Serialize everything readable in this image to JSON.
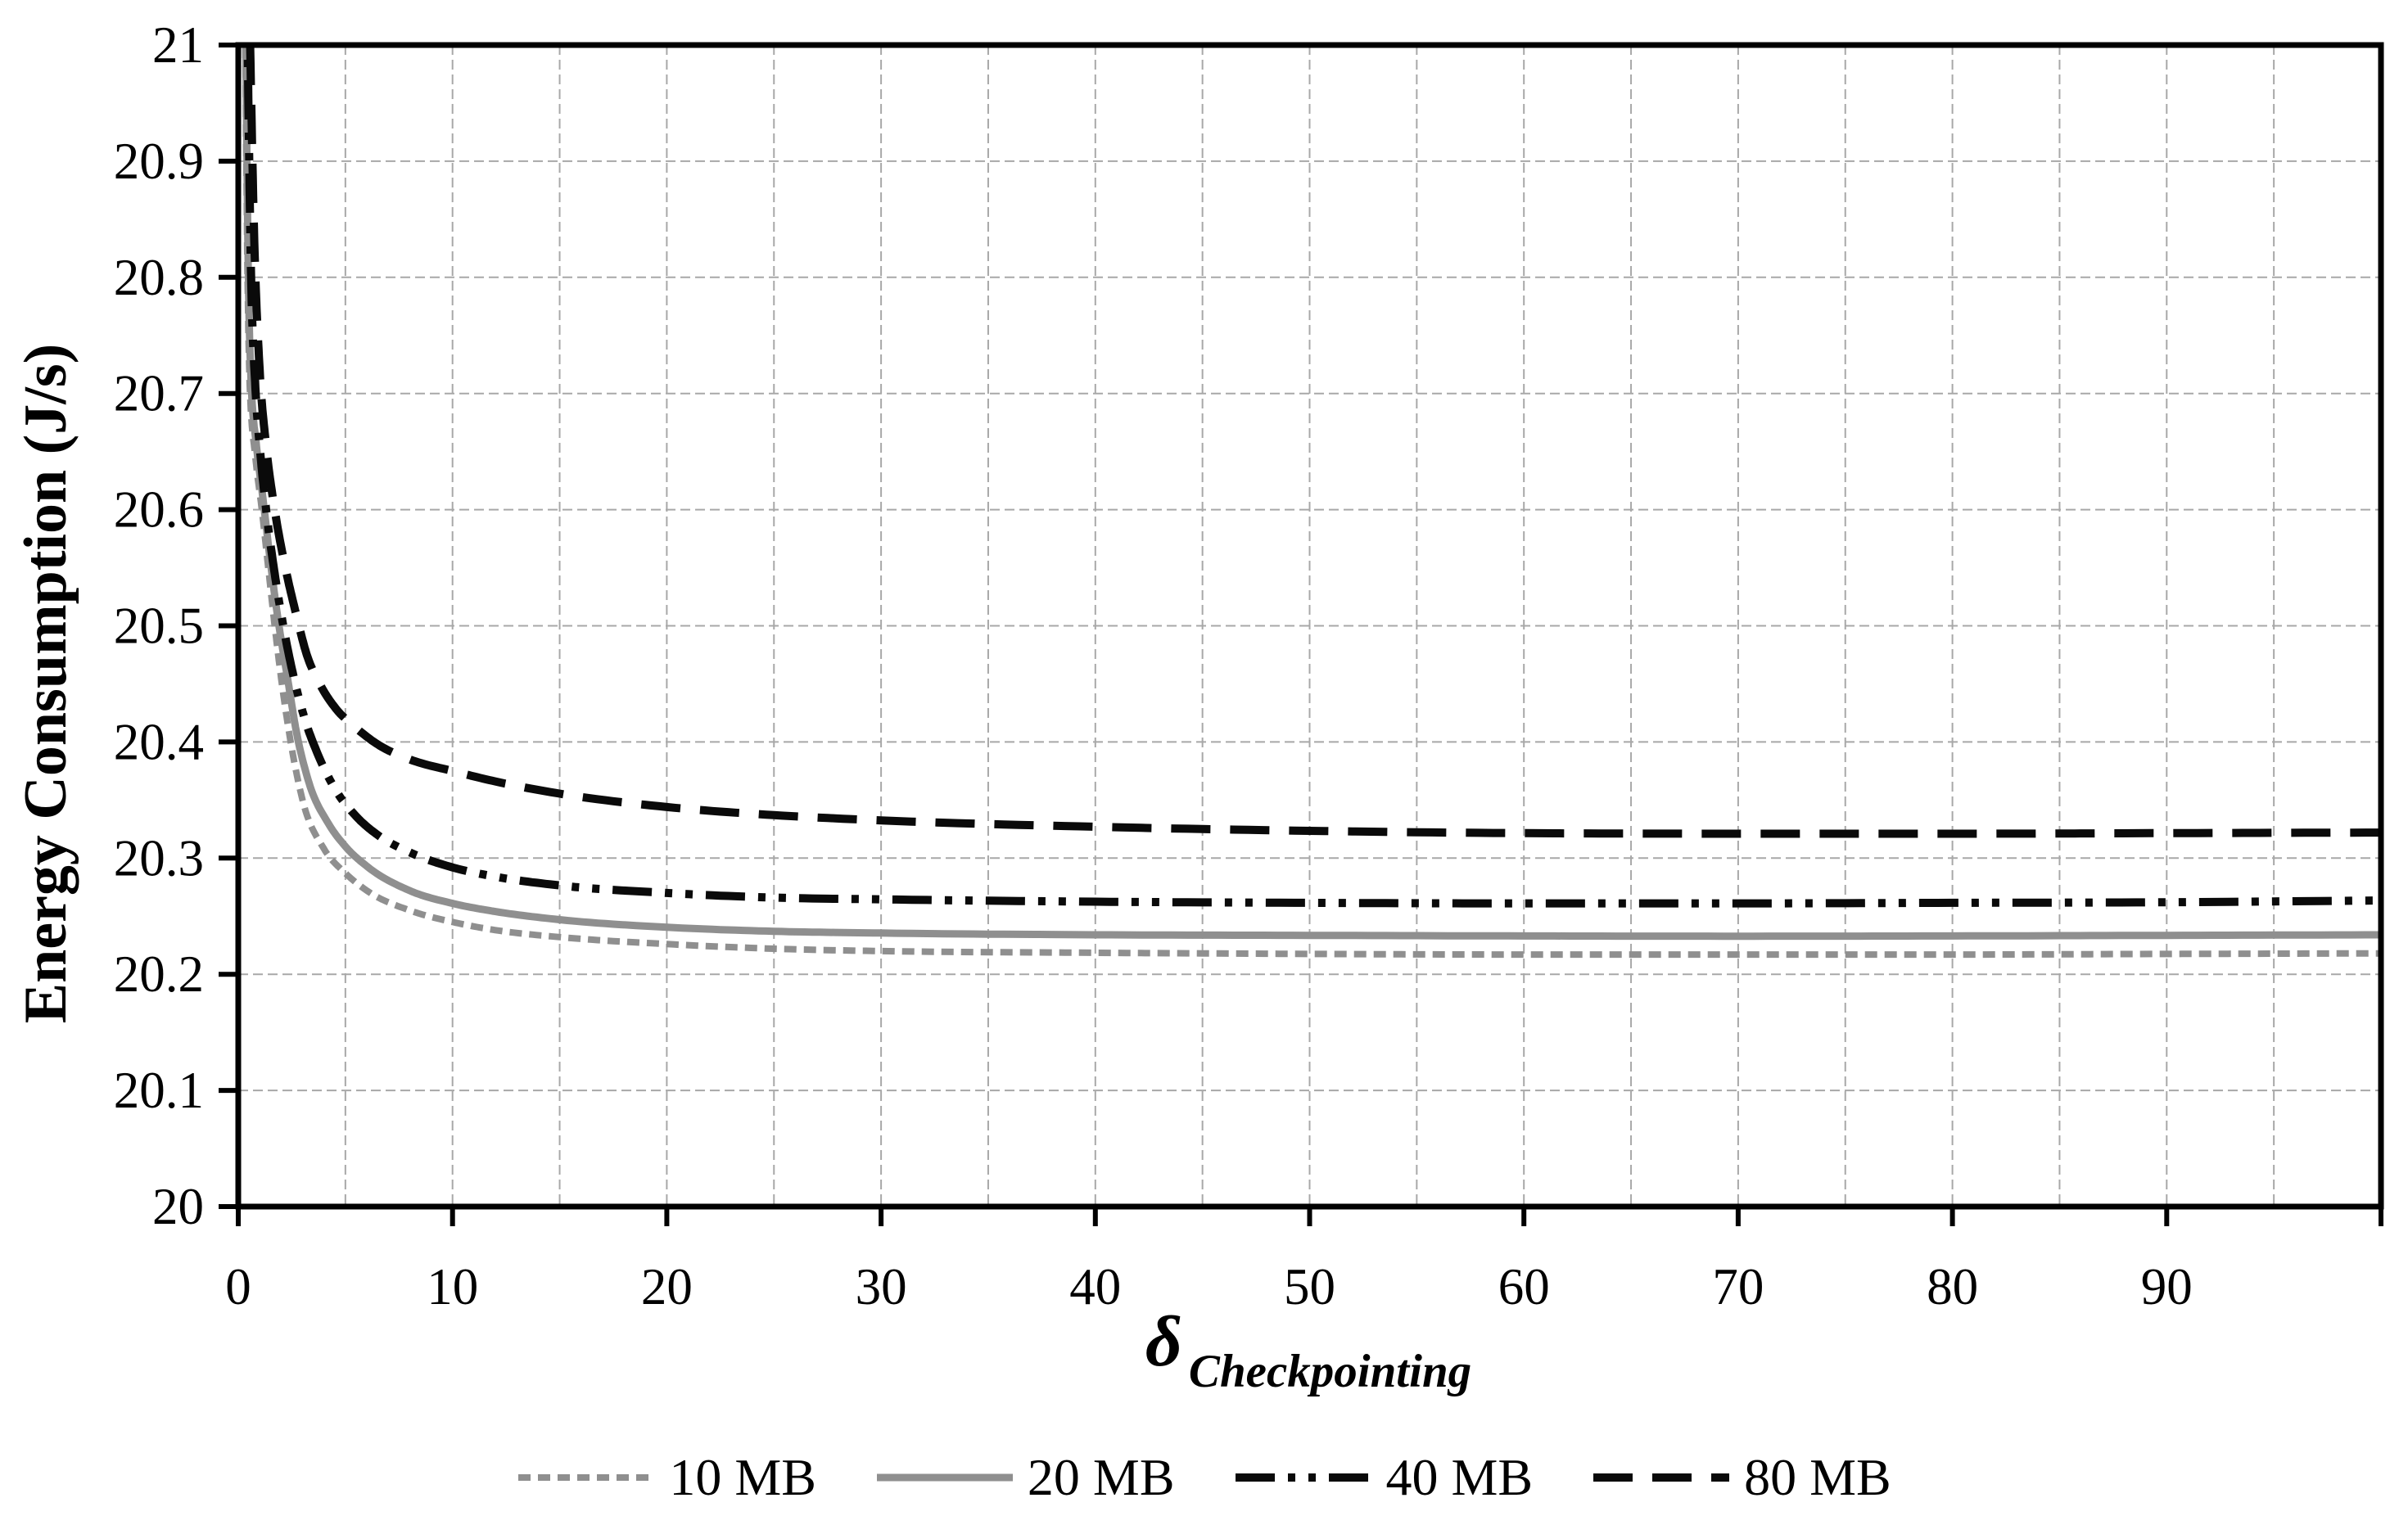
{
  "figure": {
    "background": "#ffffff",
    "text_color": "#000000"
  },
  "chart_data": {
    "type": "line",
    "title": "",
    "ylabel": "Energy Consumption (J/s)",
    "xlabel": {
      "symbol": "δ",
      "subscript": "Checkpointing"
    },
    "xlim": [
      0,
      100
    ],
    "ylim": [
      20,
      21
    ],
    "grid": {
      "x_interval": 5,
      "y_interval": 0.1,
      "color": "#a8a8a8",
      "dash": "12 6",
      "width": 2
    },
    "axis": {
      "color": "#000000",
      "border_width": 7,
      "tick_width": 6,
      "tick_length": 24
    },
    "x_ticks": {
      "values": [
        0,
        10,
        20,
        30,
        40,
        50,
        60,
        70,
        80,
        90,
        100
      ],
      "labels": [
        "0",
        "10",
        "20",
        "30",
        "40",
        "50",
        "60",
        "70",
        "80",
        "90",
        ""
      ]
    },
    "y_ticks": {
      "values": [
        20,
        20.1,
        20.2,
        20.3,
        20.4,
        20.5,
        20.6,
        20.7,
        20.8,
        20.9,
        21
      ],
      "labels": [
        "20",
        "20.1",
        "20.2",
        "20.3",
        "20.4",
        "20.5",
        "20.6",
        "20.7",
        "20.8",
        "20.9",
        "21"
      ]
    },
    "legend_position": "bottom-center",
    "series": [
      {
        "name": "10 MB",
        "color": "#8f8f8f",
        "width": 8,
        "dash": "15 9",
        "x": [
          0.3,
          0.45,
          0.55,
          0.8,
          1.1,
          1.4,
          1.7,
          2.0,
          2.4,
          3,
          4,
          5,
          6,
          8,
          10,
          12,
          15,
          20,
          25,
          30,
          40,
          50,
          60,
          70,
          80,
          90,
          100
        ],
        "y": [
          21.05,
          20.78,
          20.7,
          20.645,
          20.6,
          20.55,
          20.5,
          20.455,
          20.405,
          20.35,
          20.308,
          20.287,
          20.272,
          20.255,
          20.245,
          20.238,
          20.232,
          20.226,
          20.222,
          20.22,
          20.2185,
          20.2175,
          20.217,
          20.217,
          20.217,
          20.2175,
          20.218
        ]
      },
      {
        "name": "20 MB",
        "color": "#8f8f8f",
        "width": 9,
        "dash": "",
        "x": [
          0.32,
          0.48,
          0.6,
          0.85,
          1.15,
          1.5,
          1.9,
          2.3,
          2.7,
          3.3,
          4.2,
          5,
          6,
          8,
          10,
          12,
          15,
          20,
          25,
          30,
          40,
          50,
          60,
          70,
          80,
          90,
          100
        ],
        "y": [
          21.05,
          20.79,
          20.71,
          20.655,
          20.61,
          20.555,
          20.5,
          20.455,
          20.41,
          20.365,
          20.33,
          20.31,
          20.293,
          20.272,
          20.261,
          20.254,
          20.247,
          20.2405,
          20.237,
          20.2355,
          20.234,
          20.2335,
          20.233,
          20.2328,
          20.233,
          20.2335,
          20.234
        ]
      },
      {
        "name": "40 MB",
        "color": "#0a0a0a",
        "width": 10,
        "dash": "48 16 9 16 9 16",
        "x": [
          0.4,
          0.6,
          0.8,
          1.0,
          1.3,
          1.7,
          2.1,
          2.6,
          3.1,
          3.7,
          4.5,
          5.5,
          6.5,
          8,
          10,
          12,
          15,
          20,
          25,
          30,
          40,
          50,
          60,
          70,
          80,
          90,
          100
        ],
        "y": [
          21.05,
          20.8,
          20.705,
          20.655,
          20.6,
          20.545,
          20.5,
          20.455,
          20.42,
          20.39,
          20.36,
          20.336,
          20.32,
          20.305,
          20.292,
          20.284,
          20.2765,
          20.27,
          20.266,
          20.2645,
          20.2625,
          20.2615,
          20.261,
          20.261,
          20.2615,
          20.262,
          20.2635
        ]
      },
      {
        "name": "80 MB",
        "color": "#0a0a0a",
        "width": 10,
        "dash": "48 24",
        "x": [
          0.5,
          0.75,
          1.0,
          1.3,
          1.7,
          2.2,
          2.7,
          3.2,
          3.8,
          4.5,
          5.5,
          6.5,
          8,
          10,
          12,
          15,
          20,
          25,
          30,
          40,
          50,
          60,
          70,
          80,
          90,
          100
        ],
        "y": [
          21.05,
          20.83,
          20.72,
          20.655,
          20.6,
          20.55,
          20.51,
          20.475,
          20.45,
          20.43,
          20.412,
          20.398,
          20.385,
          20.375,
          20.366,
          20.3555,
          20.344,
          20.337,
          20.3325,
          20.327,
          20.3235,
          20.3215,
          20.321,
          20.321,
          20.3215,
          20.322
        ]
      }
    ]
  }
}
